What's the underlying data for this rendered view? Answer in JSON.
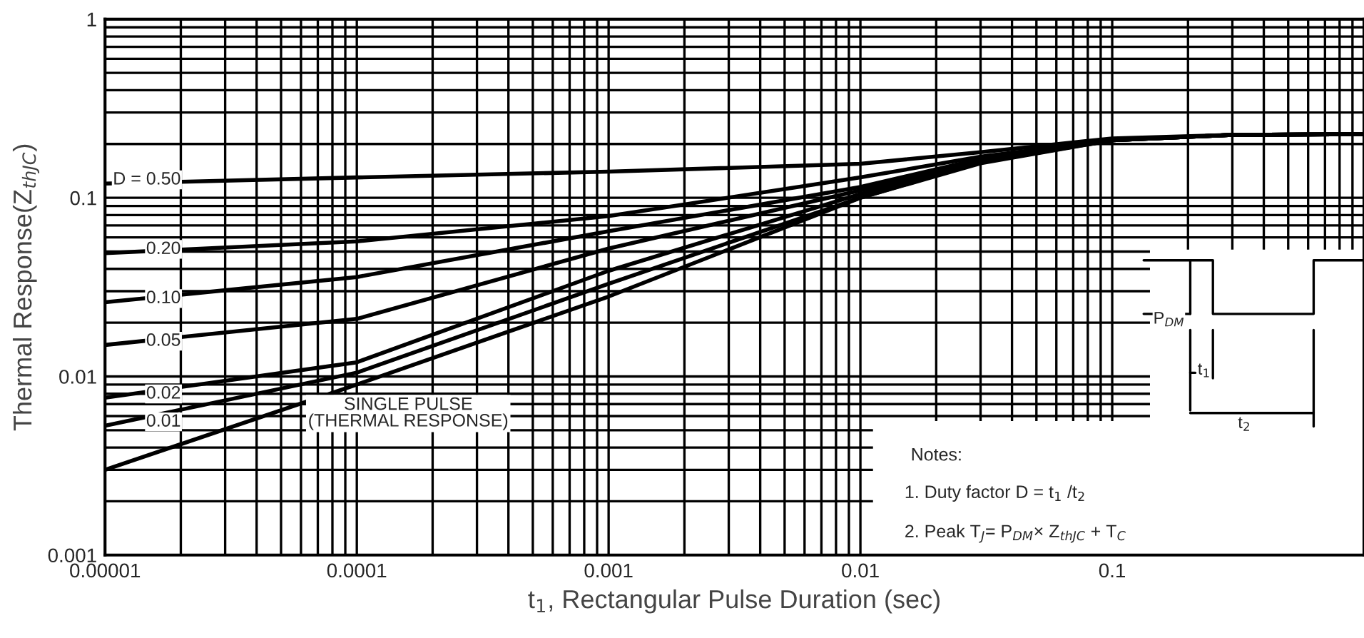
{
  "chart_data": {
    "type": "line",
    "xlabel": "t$_{1}$, Rectangular Pulse Duration (sec)",
    "ylabel": "Thermal Response(Z$_{thJC}$)",
    "log": "xy",
    "grid": true,
    "legend": false,
    "marker": "none",
    "line_style": "solid",
    "xlim": [
      1e-05,
      1
    ],
    "ylim": [
      0.001,
      1
    ],
    "xticks": [
      {
        "value": 1e-05,
        "label": "0.00001"
      },
      {
        "value": 0.0001,
        "label": "0.0001"
      },
      {
        "value": 0.001,
        "label": "0.001"
      },
      {
        "value": 0.01,
        "label": "0.01"
      },
      {
        "value": 0.1,
        "label": "0.1"
      },
      {
        "value": 1,
        "label": null
      }
    ],
    "yticks": [
      0.001,
      0.01,
      0.1,
      1
    ],
    "x": [
      1e-05,
      0.0001,
      0.001,
      0.01,
      0.03,
      0.1,
      0.3,
      1
    ],
    "series": [
      {
        "name": "D = 0.50",
        "color": "#000000",
        "values": [
          0.12,
          0.13,
          0.14,
          0.155,
          0.18,
          0.215,
          0.225,
          0.227
        ]
      },
      {
        "name": "0.20",
        "color": "#000000",
        "values": [
          0.049,
          0.057,
          0.079,
          0.13,
          0.17,
          0.21,
          0.225,
          0.227
        ]
      },
      {
        "name": "0.10",
        "color": "#000000",
        "values": [
          0.026,
          0.036,
          0.065,
          0.115,
          0.165,
          0.21,
          0.225,
          0.227
        ]
      },
      {
        "name": "0.05",
        "color": "#000000",
        "values": [
          0.015,
          0.021,
          0.052,
          0.11,
          0.162,
          0.21,
          0.225,
          0.227
        ]
      },
      {
        "name": "0.02",
        "color": "#000000",
        "values": [
          0.0076,
          0.012,
          0.039,
          0.105,
          0.16,
          0.21,
          0.225,
          0.227
        ]
      },
      {
        "name": "0.01",
        "color": "#000000",
        "values": [
          0.0053,
          0.0105,
          0.033,
          0.1,
          0.158,
          0.21,
          0.225,
          0.227
        ]
      },
      {
        "name": "SINGLE PULSE\n(THERMAL RESPONSE)",
        "color": "#000000",
        "values": [
          0.003,
          0.009,
          0.028,
          0.1,
          0.156,
          0.21,
          0.225,
          0.227
        ]
      }
    ],
    "annotations": [
      "Notes:",
      "1. Duty factor D = t$_{1}$ /t$_{2}$",
      "2. Peak T$_{J}$= P$_{DM}$× Z$_{thJC}$ + T$_{C}$",
      "P$_{DM}$",
      "t$_{1}$",
      "t$_{2}$"
    ]
  }
}
